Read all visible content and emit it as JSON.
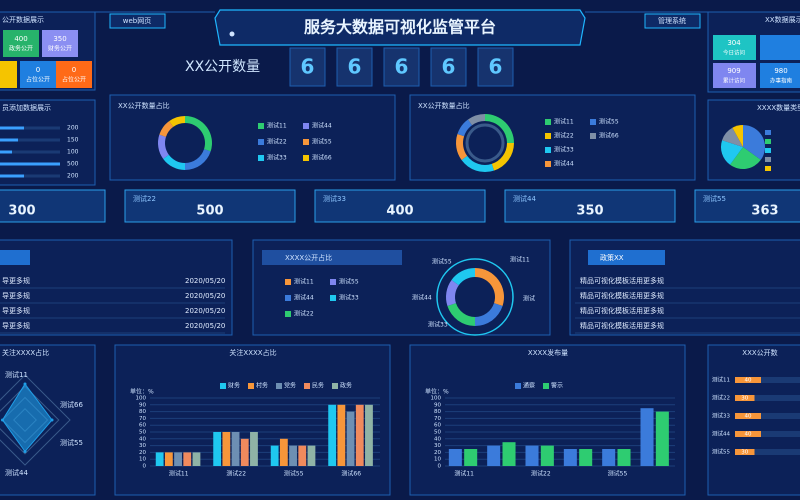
{
  "header": {
    "title": "服务大数据可视化监管平台",
    "left_button": "web网页",
    "right_button": "管理系统"
  },
  "public_tiles": {
    "title": "公开数据展示",
    "tiles": [
      {
        "value": 400,
        "label": "政务公开",
        "color": "#27b36b"
      },
      {
        "value": 350,
        "label": "财务公开",
        "color": "#8b8ff2"
      },
      {
        "value": 0,
        "label": "占位公开",
        "color": "#1f7fe0"
      },
      {
        "value": 0,
        "label": "占位公开",
        "color": "#ff6a17"
      }
    ]
  },
  "counter": {
    "label": "XX公开数量",
    "digits": [
      6,
      6,
      6,
      6,
      6
    ]
  },
  "staff_bars": {
    "title": "员添加数据展示",
    "type": "bar",
    "values": [
      200,
      150,
      100,
      500,
      200
    ],
    "xlim": [
      0,
      500
    ],
    "color": "#3aa0ff"
  },
  "donut1": {
    "title": "XX公开数量占比",
    "type": "donut",
    "categories": [
      "测试11",
      "测试22",
      "测试33",
      "测试44",
      "测试55",
      "测试66"
    ],
    "values": [
      30,
      20,
      15,
      15,
      10,
      10
    ],
    "colors": [
      "#2ecc71",
      "#3b7bdb",
      "#1fc8f0",
      "#7f86f0",
      "#f7963a",
      "#f5c400"
    ]
  },
  "donut2": {
    "title": "XX公开数量占比",
    "type": "donut",
    "categories": [
      "测试11",
      "测试22",
      "测试33",
      "测试44",
      "测试55",
      "测试66"
    ],
    "values": [
      25,
      20,
      20,
      15,
      10,
      10
    ],
    "colors": [
      "#2ecc71",
      "#f5c400",
      "#1fc8f0",
      "#f7963a",
      "#3b7bdb",
      "#7f8fa6"
    ]
  },
  "visit_tiles": {
    "title": "XX数据展示",
    "tiles": [
      {
        "value": 304,
        "label": "今日访问",
        "color": "#1ec4c4"
      },
      {
        "value": 909,
        "label": "累计访问",
        "color": "#7f86f0"
      },
      {
        "value": 980,
        "label": "办事指南",
        "color": "#1f7fe0"
      }
    ]
  },
  "type_pie": {
    "title": "XXXX数量类型",
    "type": "pie",
    "values": [
      35,
      25,
      20,
      12,
      8
    ],
    "colors": [
      "#3b7bdb",
      "#2ecc71",
      "#1fc8f0",
      "#7f8fa6",
      "#f5c400"
    ]
  },
  "stats": {
    "items": [
      {
        "value": 300
      },
      {
        "label": "测试22",
        "value": 500
      },
      {
        "label": "测试33",
        "value": 400
      },
      {
        "label": "测试44",
        "value": 350
      },
      {
        "label": "测试55",
        "value": 363
      }
    ]
  },
  "news": {
    "items": [
      {
        "text": "导更多规",
        "date": "2020/05/20"
      },
      {
        "text": "导更多规",
        "date": "2020/05/20"
      },
      {
        "text": "导更多规",
        "date": "2020/05/20"
      },
      {
        "text": "导更多规",
        "date": "2020/05/20"
      }
    ]
  },
  "share": {
    "title": "XXXX公开占比",
    "type": "donut",
    "categories": [
      "测试11",
      "测试44",
      "测试22",
      "测试55",
      "测试33"
    ],
    "values": [
      30,
      20,
      20,
      15,
      15
    ],
    "colors": [
      "#f7963a",
      "#3b7bdb",
      "#2ecc71",
      "#7f86f0",
      "#1fc8f0"
    ],
    "outer_labels": [
      "测试55",
      "测试11",
      "测试44",
      "测试",
      "测试33"
    ]
  },
  "policy": {
    "title": "政策XX",
    "items": [
      "精品可视化模板活用更多规",
      "精品可视化模板活用更多规",
      "精品可视化模板活用更多规",
      "精品可视化模板活用更多规"
    ]
  },
  "radar": {
    "title": "关注XXXX占比",
    "type": "radar",
    "categories": [
      "测试11",
      "测试66",
      "测试55",
      "测试44"
    ],
    "values": [
      80,
      60,
      70,
      50
    ],
    "rlim": [
      0,
      100
    ],
    "color": "#1f9ee8"
  },
  "bar1": {
    "title": "关注XXXX占比",
    "type": "bar",
    "unit": "单位：%",
    "categories": [
      "测试11",
      "测试22",
      "测试55",
      "测试66"
    ],
    "series": [
      {
        "name": "财务",
        "color": "#1fc8f0",
        "values": [
          20,
          50,
          30,
          90
        ]
      },
      {
        "name": "村务",
        "color": "#f7963a",
        "values": [
          20,
          50,
          40,
          90
        ]
      },
      {
        "name": "党务",
        "color": "#6d8fb3",
        "values": [
          20,
          50,
          30,
          80
        ]
      },
      {
        "name": "民务",
        "color": "#f08a5d",
        "values": [
          20,
          40,
          30,
          90
        ]
      },
      {
        "name": "政务",
        "color": "#8fb3a6",
        "values": [
          20,
          50,
          30,
          90
        ]
      }
    ],
    "ylim": [
      0,
      100
    ],
    "yticks": [
      0,
      10,
      20,
      30,
      40,
      50,
      60,
      70,
      80,
      90,
      100
    ]
  },
  "bar2": {
    "title": "XXXX发布量",
    "type": "bar",
    "unit": "单位：%",
    "categories": [
      "测试11",
      null,
      "测试22",
      null,
      "测试55",
      null
    ],
    "series": [
      {
        "name": "通察",
        "color": "#3b7bdb",
        "values": [
          25,
          30,
          30,
          25,
          25,
          85
        ]
      },
      {
        "name": "警示",
        "color": "#2ecc71",
        "values": [
          25,
          35,
          30,
          25,
          25,
          80
        ]
      }
    ],
    "ylim": [
      0,
      100
    ],
    "yticks": [
      0,
      10,
      20,
      30,
      40,
      50,
      60,
      70,
      80,
      90,
      100
    ]
  },
  "hbar": {
    "title": "XXX公开数",
    "type": "hbar",
    "categories": [
      "测试11",
      "测试22",
      "测试33",
      "测试44",
      "测试55"
    ],
    "values": [
      40,
      30,
      40,
      40,
      30
    ],
    "xlim": [
      0,
      100
    ],
    "color": "#f7963a"
  }
}
